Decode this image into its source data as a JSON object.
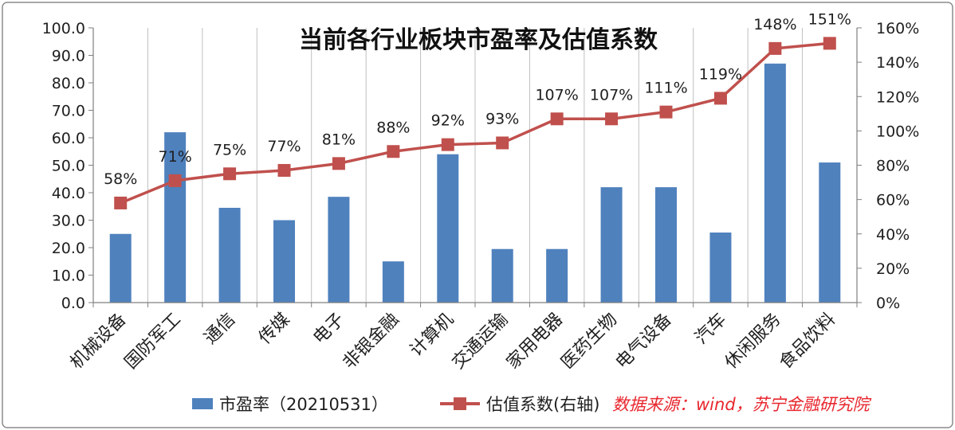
{
  "chart_data": {
    "type": "bar+line",
    "title": "当前各行业板块市盈率及估值系数",
    "categories": [
      "机械设备",
      "国防军工",
      "通信",
      "传媒",
      "电子",
      "非银金融",
      "计算机",
      "交通运输",
      "家用电器",
      "医药生物",
      "电气设备",
      "汽车",
      "休闲服务",
      "食品饮料"
    ],
    "series": [
      {
        "name": "市盈率（20210531）",
        "type": "bar",
        "axis": "left",
        "color": "#4f81bd",
        "values": [
          25.0,
          62.0,
          34.5,
          30.0,
          38.5,
          15.0,
          54.0,
          19.5,
          19.5,
          42.0,
          42.0,
          25.5,
          87.0,
          51.0
        ]
      },
      {
        "name": "估值系数(右轴)",
        "type": "line",
        "axis": "right",
        "color": "#c0504d",
        "values": [
          58,
          71,
          75,
          77,
          81,
          88,
          92,
          93,
          107,
          107,
          111,
          119,
          148,
          151
        ],
        "labels": [
          "58%",
          "71%",
          "75%",
          "77%",
          "81%",
          "88%",
          "92%",
          "93%",
          "107%",
          "107%",
          "111%",
          "119%",
          "148%",
          "151%"
        ]
      }
    ],
    "y_left": {
      "min": 0,
      "max": 100,
      "ticks": [
        "0.0",
        "10.0",
        "20.0",
        "30.0",
        "40.0",
        "50.0",
        "60.0",
        "70.0",
        "80.0",
        "90.0",
        "100.0"
      ]
    },
    "y_right": {
      "min": 0,
      "max": 160,
      "ticks": [
        "0%",
        "20%",
        "40%",
        "60%",
        "80%",
        "100%",
        "120%",
        "140%",
        "160%"
      ]
    },
    "grid": "vertical",
    "legend_position": "bottom",
    "source_note": "数据来源：wind，苏宁金融研究院",
    "source_color": "#e8262d"
  }
}
